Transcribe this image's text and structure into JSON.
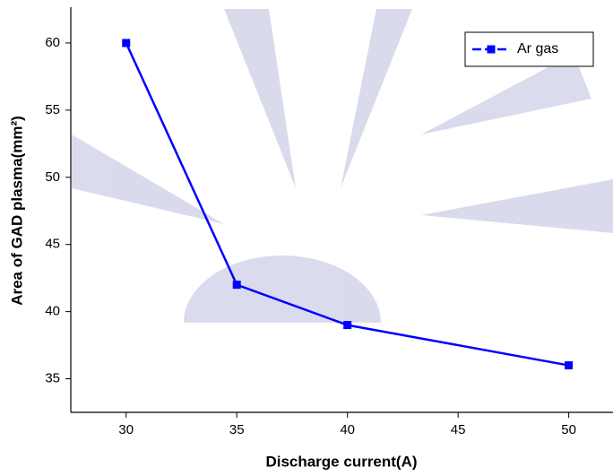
{
  "chart_data": {
    "type": "line",
    "x_label": "Discharge current(A)",
    "y_label": "Area of GAD plasma(mm²)",
    "x": [
      30,
      35,
      40,
      50
    ],
    "series": [
      {
        "name": "Ar gas",
        "color": "#0000ff",
        "values": [
          60,
          42,
          39,
          36
        ]
      }
    ],
    "xlim": [
      27.5,
      52
    ],
    "xticks": [
      30,
      35,
      40,
      45,
      50
    ],
    "ylim": [
      32.5,
      62.5
    ],
    "yticks": [
      35,
      40,
      45,
      50,
      55,
      60
    ],
    "legend": "upper right",
    "grid": false
  }
}
